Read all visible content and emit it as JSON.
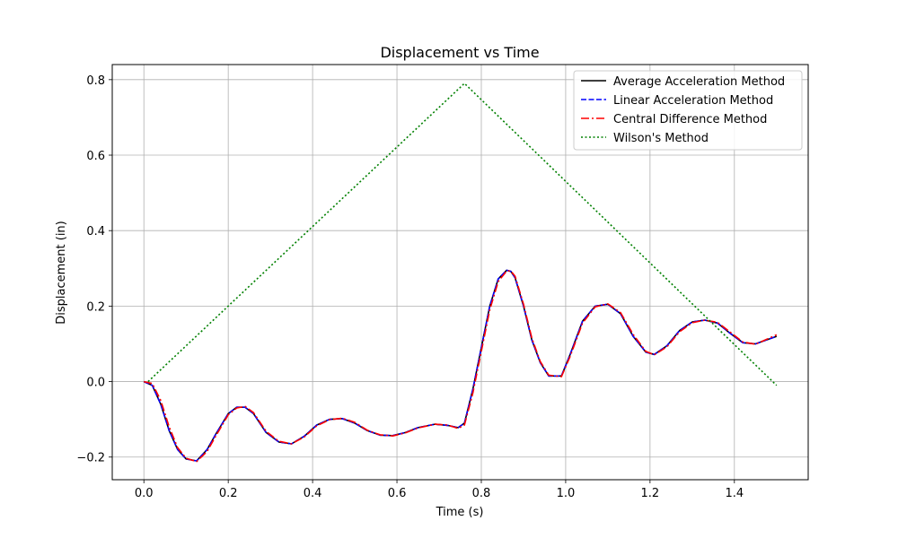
{
  "chart_data": {
    "type": "line",
    "title": "Displacement vs Time",
    "xlabel": "Time (s)",
    "ylabel": "Displacement (in)",
    "xlim": [
      -0.075,
      1.575
    ],
    "ylim": [
      -0.26,
      0.84
    ],
    "xticks": [
      0.0,
      0.2,
      0.4,
      0.6,
      0.8,
      1.0,
      1.2,
      1.4
    ],
    "xtick_labels": [
      "0.0",
      "0.2",
      "0.4",
      "0.6",
      "0.8",
      "1.0",
      "1.2",
      "1.4"
    ],
    "yticks": [
      -0.2,
      0.0,
      0.2,
      0.4,
      0.6,
      0.8
    ],
    "ytick_labels": [
      "−0.2",
      "0.0",
      "0.2",
      "0.4",
      "0.6",
      "0.8"
    ],
    "grid": true,
    "legend_position": "top-right",
    "series": [
      {
        "name": "Average Acceleration Method",
        "color": "#000000",
        "style": "solid",
        "x": [
          0.0,
          0.02,
          0.04,
          0.06,
          0.08,
          0.1,
          0.125,
          0.15,
          0.17,
          0.2,
          0.22,
          0.24,
          0.26,
          0.29,
          0.32,
          0.35,
          0.38,
          0.41,
          0.44,
          0.47,
          0.5,
          0.53,
          0.56,
          0.59,
          0.62,
          0.65,
          0.69,
          0.72,
          0.745,
          0.76,
          0.78,
          0.8,
          0.82,
          0.84,
          0.86,
          0.87,
          0.88,
          0.9,
          0.92,
          0.94,
          0.96,
          0.99,
          1.01,
          1.04,
          1.07,
          1.1,
          1.13,
          1.16,
          1.19,
          1.21,
          1.24,
          1.27,
          1.3,
          1.33,
          1.36,
          1.39,
          1.42,
          1.45,
          1.5
        ],
        "y": [
          0.0,
          -0.01,
          -0.06,
          -0.13,
          -0.18,
          -0.205,
          -0.21,
          -0.18,
          -0.14,
          -0.085,
          -0.068,
          -0.068,
          -0.085,
          -0.135,
          -0.16,
          -0.165,
          -0.145,
          -0.115,
          -0.1,
          -0.098,
          -0.11,
          -0.13,
          -0.142,
          -0.143,
          -0.135,
          -0.122,
          -0.113,
          -0.116,
          -0.122,
          -0.11,
          -0.02,
          0.09,
          0.2,
          0.272,
          0.295,
          0.292,
          0.275,
          0.2,
          0.11,
          0.05,
          0.015,
          0.015,
          0.07,
          0.16,
          0.2,
          0.205,
          0.18,
          0.12,
          0.078,
          0.072,
          0.095,
          0.135,
          0.158,
          0.163,
          0.155,
          0.128,
          0.103,
          0.1,
          0.12
        ]
      },
      {
        "name": "Linear Acceleration Method",
        "color": "#0000ff",
        "style": "dashed",
        "x": [
          0.0,
          0.02,
          0.04,
          0.06,
          0.08,
          0.1,
          0.125,
          0.15,
          0.17,
          0.2,
          0.22,
          0.24,
          0.26,
          0.29,
          0.32,
          0.35,
          0.38,
          0.41,
          0.44,
          0.47,
          0.5,
          0.53,
          0.56,
          0.59,
          0.62,
          0.65,
          0.69,
          0.72,
          0.745,
          0.76,
          0.78,
          0.8,
          0.82,
          0.84,
          0.86,
          0.87,
          0.88,
          0.9,
          0.92,
          0.94,
          0.96,
          0.99,
          1.01,
          1.04,
          1.07,
          1.1,
          1.13,
          1.16,
          1.19,
          1.21,
          1.24,
          1.27,
          1.3,
          1.33,
          1.36,
          1.39,
          1.42,
          1.45,
          1.5
        ],
        "y": [
          0.0,
          -0.01,
          -0.06,
          -0.13,
          -0.18,
          -0.205,
          -0.21,
          -0.18,
          -0.14,
          -0.085,
          -0.068,
          -0.068,
          -0.085,
          -0.135,
          -0.16,
          -0.165,
          -0.145,
          -0.115,
          -0.1,
          -0.098,
          -0.11,
          -0.13,
          -0.142,
          -0.143,
          -0.135,
          -0.122,
          -0.113,
          -0.116,
          -0.122,
          -0.11,
          -0.02,
          0.09,
          0.2,
          0.272,
          0.295,
          0.292,
          0.275,
          0.2,
          0.11,
          0.05,
          0.015,
          0.015,
          0.07,
          0.16,
          0.2,
          0.205,
          0.18,
          0.12,
          0.078,
          0.072,
          0.095,
          0.135,
          0.158,
          0.163,
          0.155,
          0.128,
          0.103,
          0.1,
          0.12
        ]
      },
      {
        "name": "Central Difference Method",
        "color": "#ff0000",
        "style": "dashdot",
        "x": [
          0.0,
          0.02,
          0.04,
          0.06,
          0.08,
          0.1,
          0.125,
          0.15,
          0.17,
          0.2,
          0.22,
          0.24,
          0.26,
          0.29,
          0.32,
          0.35,
          0.38,
          0.41,
          0.44,
          0.47,
          0.5,
          0.53,
          0.56,
          0.59,
          0.62,
          0.65,
          0.69,
          0.72,
          0.745,
          0.76,
          0.78,
          0.8,
          0.82,
          0.84,
          0.86,
          0.87,
          0.88,
          0.9,
          0.92,
          0.94,
          0.96,
          0.99,
          1.01,
          1.04,
          1.07,
          1.1,
          1.13,
          1.16,
          1.19,
          1.21,
          1.24,
          1.27,
          1.3,
          1.33,
          1.36,
          1.39,
          1.42,
          1.45,
          1.5
        ],
        "y": [
          0.0,
          -0.005,
          -0.05,
          -0.12,
          -0.175,
          -0.203,
          -0.212,
          -0.185,
          -0.145,
          -0.088,
          -0.07,
          -0.066,
          -0.082,
          -0.132,
          -0.158,
          -0.165,
          -0.147,
          -0.117,
          -0.101,
          -0.097,
          -0.108,
          -0.129,
          -0.141,
          -0.144,
          -0.136,
          -0.123,
          -0.113,
          -0.115,
          -0.124,
          -0.115,
          -0.03,
          0.08,
          0.19,
          0.265,
          0.293,
          0.293,
          0.279,
          0.205,
          0.115,
          0.053,
          0.017,
          0.013,
          0.065,
          0.155,
          0.198,
          0.206,
          0.183,
          0.125,
          0.08,
          0.071,
          0.092,
          0.132,
          0.156,
          0.163,
          0.157,
          0.131,
          0.105,
          0.099,
          0.124
        ]
      },
      {
        "name": "Wilson's Method",
        "color": "#008000",
        "style": "dotted",
        "x": [
          0.01,
          0.76,
          1.5
        ],
        "y": [
          0.0,
          0.79,
          -0.01
        ]
      }
    ]
  }
}
